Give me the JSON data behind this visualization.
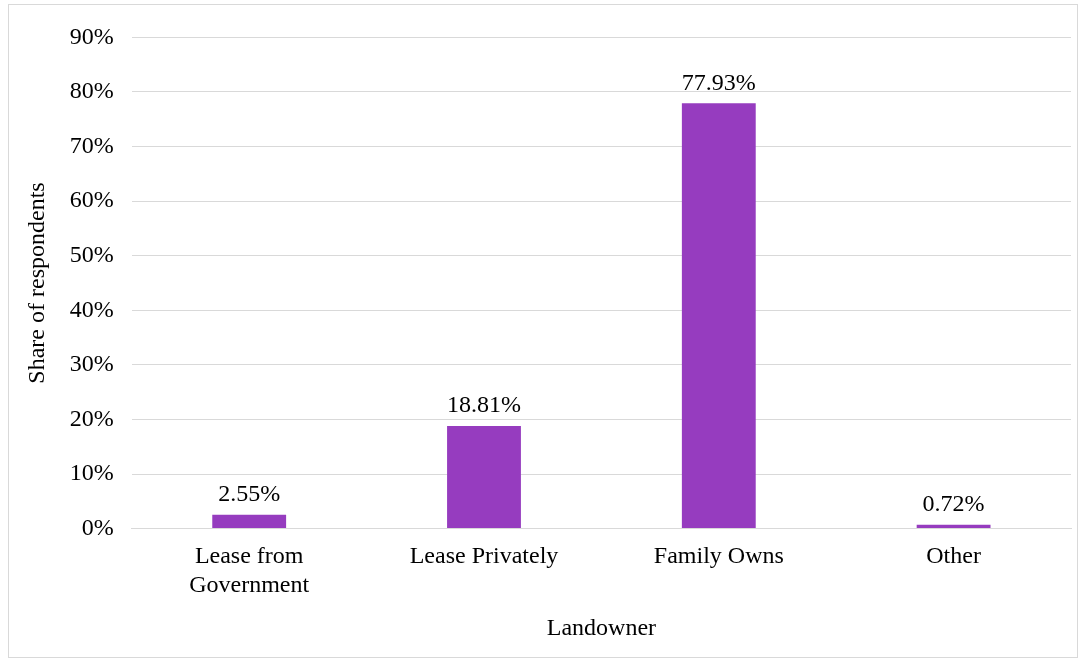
{
  "chart_data": {
    "type": "bar",
    "xlabel": "Landowner",
    "ylabel": "Share of respondents",
    "categories": [
      "Lease from Government",
      "Lease Privately",
      "Family Owns",
      "Other"
    ],
    "values": [
      2.55,
      18.81,
      77.93,
      0.72
    ],
    "value_labels": [
      "2.55%",
      "18.81%",
      "77.93%",
      "0.72%"
    ],
    "color": "#963cbf",
    "ylim": [
      0,
      90
    ],
    "yticks": [
      {
        "value": 0,
        "label": "0%"
      },
      {
        "value": 10,
        "label": "10%"
      },
      {
        "value": 20,
        "label": "20%"
      },
      {
        "value": 30,
        "label": "30%"
      },
      {
        "value": 40,
        "label": "40%"
      },
      {
        "value": 50,
        "label": "50%"
      },
      {
        "value": 60,
        "label": "60%"
      },
      {
        "value": 70,
        "label": "70%"
      },
      {
        "value": 80,
        "label": "80%"
      },
      {
        "value": 90,
        "label": "90%"
      }
    ],
    "grid": "y",
    "legend": false
  }
}
